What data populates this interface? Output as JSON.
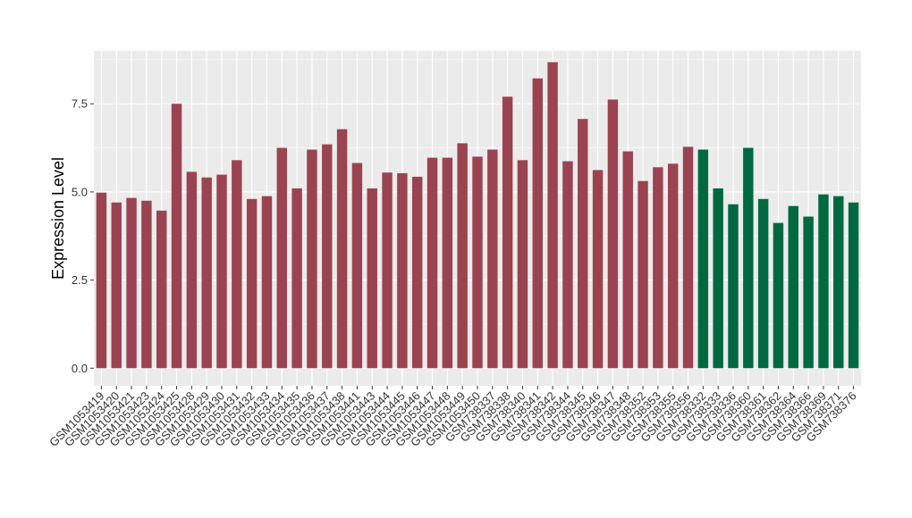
{
  "chart_data": {
    "type": "bar",
    "title": "",
    "xlabel": "",
    "ylabel": "Expression Level",
    "ylim": [
      -0.5,
      9.0
    ],
    "yticks": [
      0.0,
      2.5,
      5.0,
      7.5
    ],
    "ytick_labels": [
      "0.0",
      "2.5",
      "5.0",
      "7.5"
    ],
    "grid": true,
    "legend": "none",
    "colors": {
      "group1": "#9b4350",
      "group2": "#006940",
      "panel_bg": "#ebebeb",
      "grid": "#ffffff"
    },
    "categories": [
      "GSM1053419",
      "GSM1053420",
      "GSM1053421",
      "GSM1053423",
      "GSM1053424",
      "GSM1053425",
      "GSM1053428",
      "GSM1053429",
      "GSM1053430",
      "GSM1053431",
      "GSM1053432",
      "GSM1053433",
      "GSM1053434",
      "GSM1053435",
      "GSM1053436",
      "GSM1053437",
      "GSM1053438",
      "GSM1053441",
      "GSM1053443",
      "GSM1053444",
      "GSM1053445",
      "GSM1053446",
      "GSM1053447",
      "GSM1053448",
      "GSM1053449",
      "GSM1053450",
      "GSM738337",
      "GSM738338",
      "GSM738340",
      "GSM738341",
      "GSM738342",
      "GSM738344",
      "GSM738345",
      "GSM738346",
      "GSM738347",
      "GSM738348",
      "GSM738352",
      "GSM738353",
      "GSM738355",
      "GSM738356",
      "GSM738332",
      "GSM738333",
      "GSM738336",
      "GSM738360",
      "GSM738361",
      "GSM738362",
      "GSM738364",
      "GSM738366",
      "GSM738369",
      "GSM738371",
      "GSM738376"
    ],
    "values": [
      4.98,
      4.7,
      4.83,
      4.75,
      4.47,
      7.5,
      5.57,
      5.41,
      5.49,
      5.9,
      4.8,
      4.88,
      6.25,
      5.1,
      6.2,
      6.35,
      6.78,
      5.82,
      5.1,
      5.55,
      5.53,
      5.43,
      5.97,
      5.97,
      6.38,
      6.0,
      6.2,
      7.7,
      5.9,
      8.22,
      8.68,
      5.87,
      7.07,
      5.62,
      7.62,
      6.15,
      5.31,
      5.7,
      5.8,
      6.28,
      6.2,
      5.1,
      4.65,
      6.25,
      4.8,
      4.12,
      4.6,
      4.3,
      4.93,
      4.88,
      4.7
    ],
    "groups": [
      1,
      1,
      1,
      1,
      1,
      1,
      1,
      1,
      1,
      1,
      1,
      1,
      1,
      1,
      1,
      1,
      1,
      1,
      1,
      1,
      1,
      1,
      1,
      1,
      1,
      1,
      1,
      1,
      1,
      1,
      1,
      1,
      1,
      1,
      1,
      1,
      1,
      1,
      1,
      1,
      2,
      2,
      2,
      2,
      2,
      2,
      2,
      2,
      2,
      2,
      2
    ]
  }
}
